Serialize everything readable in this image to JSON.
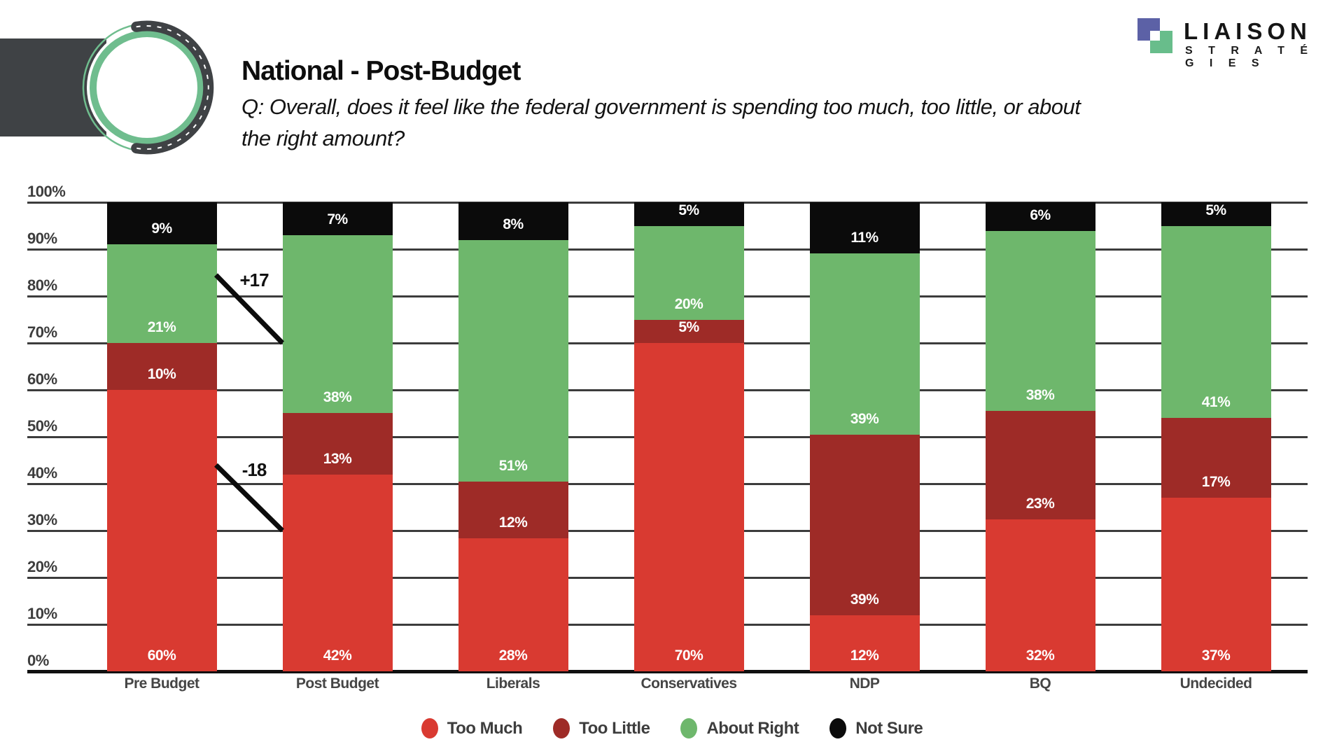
{
  "header": {
    "title": "National - Post-Budget",
    "question_lines": [
      "Q: Overall, does it feel like the federal government is spending too much, too little, or about",
      "the right amount?"
    ]
  },
  "brand": {
    "name": "LIAISON",
    "tagline": "S T R A T É G I E S",
    "square_purple": "#5c61a6",
    "square_green": "#68bd8b",
    "logo_gray": "#3f4245",
    "logo_ring_green": "#6fbd8e"
  },
  "chart_data": {
    "type": "bar",
    "stacked": true,
    "title": "National - Post-Budget",
    "categories": [
      "Pre Budget",
      "Post Budget",
      "Liberals",
      "Conservatives",
      "NDP",
      "BQ",
      "Undecided"
    ],
    "series": [
      {
        "name": "Too Much",
        "color": "#d93a31",
        "values": [
          60,
          42,
          28,
          70,
          12,
          32,
          37
        ]
      },
      {
        "name": "Too Little",
        "color": "#9e2b27",
        "values": [
          10,
          13,
          12,
          5,
          39,
          23,
          17
        ]
      },
      {
        "name": "About Right",
        "color": "#6eb76c",
        "values": [
          21,
          38,
          51,
          20,
          39,
          38,
          41
        ]
      },
      {
        "name": "Not Sure",
        "color": "#0b0b0b",
        "values": [
          9,
          7,
          8,
          5,
          11,
          6,
          5
        ]
      }
    ],
    "y_ticks": [
      "0%",
      "10%",
      "20%",
      "30%",
      "40%",
      "50%",
      "60%",
      "70%",
      "80%",
      "90%",
      "100%"
    ],
    "ylim": [
      0,
      100
    ],
    "grid": true,
    "legend_position": "bottom",
    "annotations": [
      {
        "label": "+17",
        "between": [
          "Pre Budget",
          "Post Budget"
        ],
        "from_pct": 84.5,
        "to_pct": 70
      },
      {
        "label": "-18",
        "between": [
          "Pre Budget",
          "Post Budget"
        ],
        "from_pct": 44,
        "to_pct": 30
      }
    ]
  }
}
